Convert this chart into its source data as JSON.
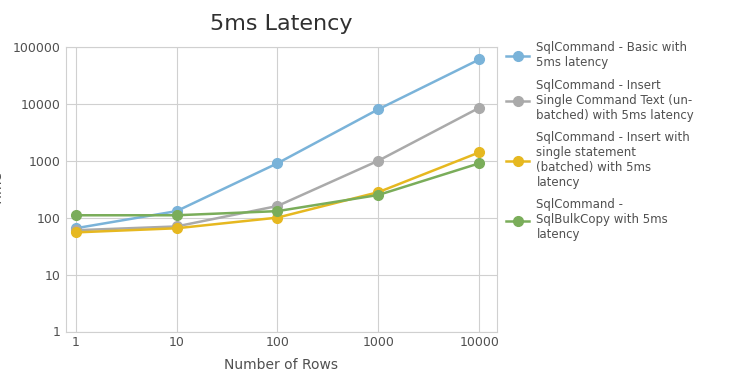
{
  "title": "5ms Latency",
  "xlabel": "Number of Rows",
  "x_values": [
    1,
    10,
    100,
    1000,
    10000
  ],
  "series": [
    {
      "label": "SqlCommand - Basic with\n5ms latency",
      "color": "#7ab3d9",
      "marker": "o",
      "values": [
        65,
        130,
        900,
        8000,
        60000
      ]
    },
    {
      "label": "SqlCommand - Insert\nSingle Command Text (un-\nbatched) with 5ms latency",
      "color": "#aaaaaa",
      "marker": "o",
      "values": [
        60,
        70,
        160,
        1000,
        8500
      ]
    },
    {
      "label": "SqlCommand - Insert with\nsingle statement\n(batched) with 5ms\nlatency",
      "color": "#e6b820",
      "marker": "o",
      "values": [
        55,
        65,
        100,
        280,
        1400
      ]
    },
    {
      "label": "SqlCommand -\nSqlBulkCopy with 5ms\nlatency",
      "color": "#7aad5a",
      "marker": "o",
      "values": [
        110,
        110,
        130,
        250,
        900
      ]
    }
  ],
  "ylim": [
    1,
    100000
  ],
  "background_color": "#ffffff",
  "plot_background": "#ffffff",
  "grid_color": "#d0d0d0",
  "title_fontsize": 16,
  "axis_label_fontsize": 10,
  "tick_fontsize": 9,
  "legend_fontsize": 8.5,
  "marker_size": 7,
  "line_width": 1.8
}
